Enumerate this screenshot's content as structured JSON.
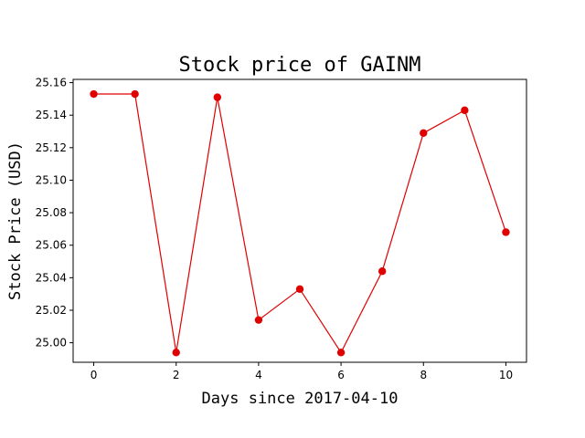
{
  "chart_data": {
    "type": "line",
    "title": "Stock price of GAINM",
    "xlabel": "Days since 2017-04-10",
    "ylabel": "Stock Price (USD)",
    "xlim": [
      -0.5,
      10.5
    ],
    "ylim": [
      24.988,
      25.162
    ],
    "xticks": [
      0,
      2,
      4,
      6,
      8,
      10
    ],
    "yticks": [
      25.0,
      25.02,
      25.04,
      25.06,
      25.08,
      25.1,
      25.12,
      25.14,
      25.16
    ],
    "ytick_labels": [
      "25.00",
      "25.02",
      "25.04",
      "25.06",
      "25.08",
      "25.10",
      "25.12",
      "25.14",
      "25.16"
    ],
    "grid": false,
    "series": [
      {
        "color": "#e00000",
        "marker": "circle",
        "x": [
          0,
          1,
          2,
          3,
          4,
          5,
          6,
          7,
          8,
          9,
          10
        ],
        "y": [
          25.153,
          25.153,
          24.994,
          25.151,
          25.014,
          25.033,
          24.994,
          25.044,
          25.129,
          25.143,
          25.068
        ]
      }
    ]
  }
}
